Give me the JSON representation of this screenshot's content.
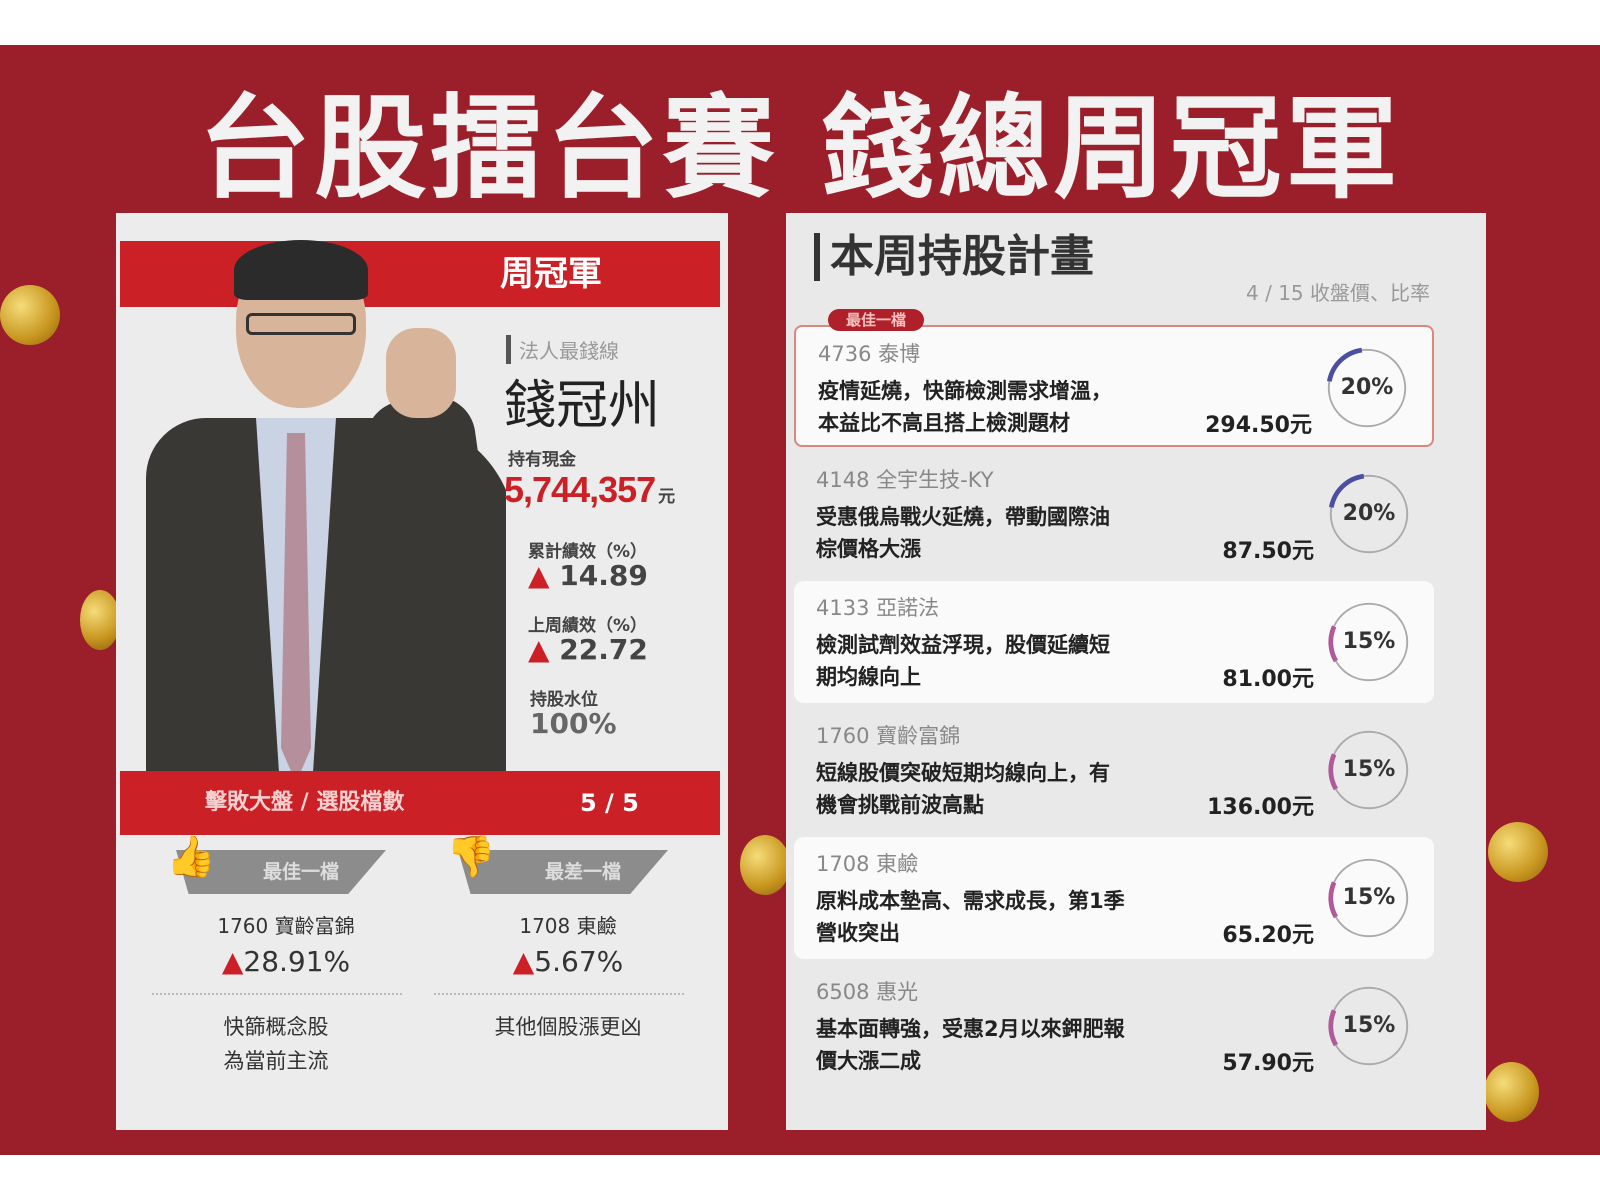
{
  "title": "台股擂台賽 錢總周冠軍",
  "colors": {
    "background": "#9b1f2a",
    "accent": "#cc2027",
    "ring_20": "#4a4fa0",
    "ring_15": "#b05a9a"
  },
  "left": {
    "header": "周冠軍",
    "subtitle": "法人最錢線",
    "name": "錢冠州",
    "cash_label": "持有現金",
    "cash_value": "5,744,357",
    "cash_unit": "元",
    "cumulative_label": "累計績效（%）",
    "cumulative_value": "14.89",
    "lastweek_label": "上周績效（%）",
    "lastweek_value": "22.72",
    "holding_label": "持股水位",
    "holding_value": "100%",
    "beat_label": "擊敗大盤 / 選股檔數",
    "beat_value": "5 / 5",
    "best": {
      "label": "最佳一檔",
      "stock": "1760  寶齡富錦",
      "change": "28.91%",
      "note1": "快篩概念股",
      "note2": "為當前主流"
    },
    "worst": {
      "label": "最差一檔",
      "stock": "1708  東鹼",
      "change": "5.67%",
      "note1": "其他個股漲更凶"
    }
  },
  "right": {
    "title": "本周持股計畫",
    "subtitle": "4 / 15 收盤價、比率",
    "best_badge": "最佳一檔",
    "stocks": [
      {
        "code": "4736  泰博",
        "line1": "疫情延燒，快篩檢測需求增溫，",
        "line2": "本益比不高且搭上檢測題材",
        "price": "294.50元",
        "ratio": "20%",
        "pct": 20
      },
      {
        "code": "4148  全宇生技-KY",
        "line1": "受惠俄烏戰火延燒，帶動國際油",
        "line2": "棕價格大漲",
        "price": "87.50元",
        "ratio": "20%",
        "pct": 20
      },
      {
        "code": "4133  亞諾法",
        "line1": "檢測試劑效益浮現，股價延續短",
        "line2": "期均線向上",
        "price": "81.00元",
        "ratio": "15%",
        "pct": 15
      },
      {
        "code": "1760  寶齡富錦",
        "line1": "短線股價突破短期均線向上，有",
        "line2": "機會挑戰前波高點",
        "price": "136.00元",
        "ratio": "15%",
        "pct": 15
      },
      {
        "code": "1708  東鹼",
        "line1": "原料成本墊高、需求成長，第1季",
        "line2": "營收突出",
        "price": "65.20元",
        "ratio": "15%",
        "pct": 15
      },
      {
        "code": "6508  惠光",
        "line1": "基本面轉強，受惠2月以來鉀肥報",
        "line2": "價大漲二成",
        "price": "57.90元",
        "ratio": "15%",
        "pct": 15
      }
    ]
  }
}
